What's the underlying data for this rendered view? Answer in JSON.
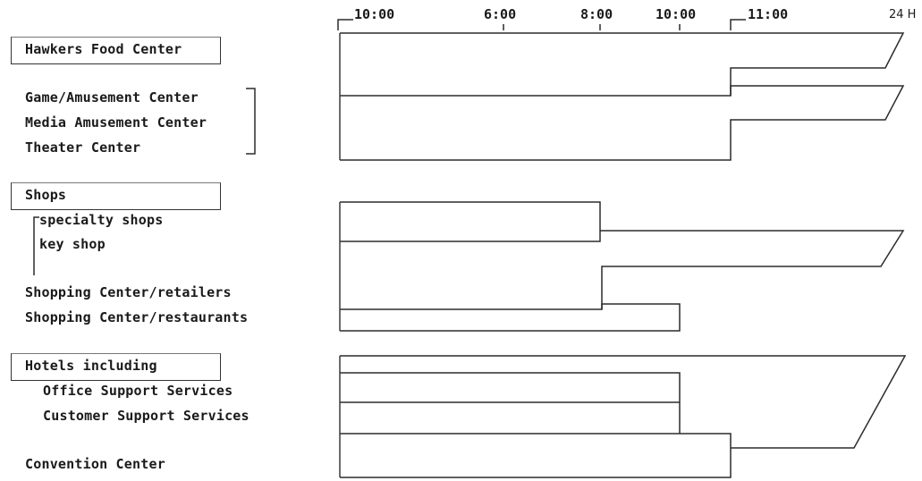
{
  "time_axis": {
    "ticks": [
      "10:00",
      "6:00",
      "8:00",
      "10:00",
      "11:00",
      "24 H"
    ]
  },
  "facilities": {
    "hawkers": "Hawkers Food Center",
    "game": "Game/Amusement Center",
    "media": "Media Amusement Center",
    "theater": "Theater Center",
    "shops": "Shops",
    "specialty": "specialty shops",
    "key_shop": "key shop",
    "sc_retailers": "Shopping Center/retailers",
    "sc_restaurants": "Shopping Center/restaurants",
    "hotels": "Hotels including",
    "office_support": "Office Support Services",
    "customer_support": "Customer Support Services",
    "convention": "Convention Center"
  }
}
